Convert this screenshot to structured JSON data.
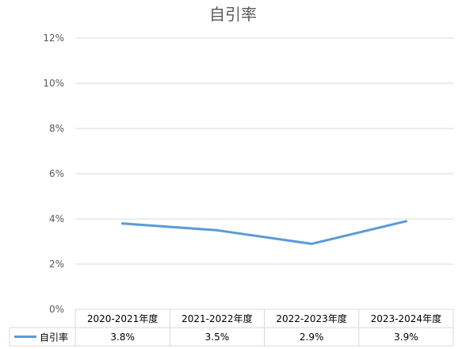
{
  "chart_data": {
    "type": "line",
    "title": "自引率",
    "categories": [
      "2020-2021年度",
      "2021-2022年度",
      "2022-2023年度",
      "2023-2024年度"
    ],
    "series": [
      {
        "name": "自引率",
        "values": [
          3.8,
          3.5,
          2.9,
          3.9
        ],
        "labels": [
          "3.8%",
          "3.5%",
          "2.9%",
          "3.9%"
        ],
        "color": "#5b9bd5"
      }
    ],
    "y_ticks": [
      "0%",
      "2%",
      "4%",
      "6%",
      "8%",
      "10%",
      "12%"
    ],
    "ylim": [
      0,
      12
    ],
    "grid": true,
    "legend": "data-table-left",
    "data_table": true
  }
}
